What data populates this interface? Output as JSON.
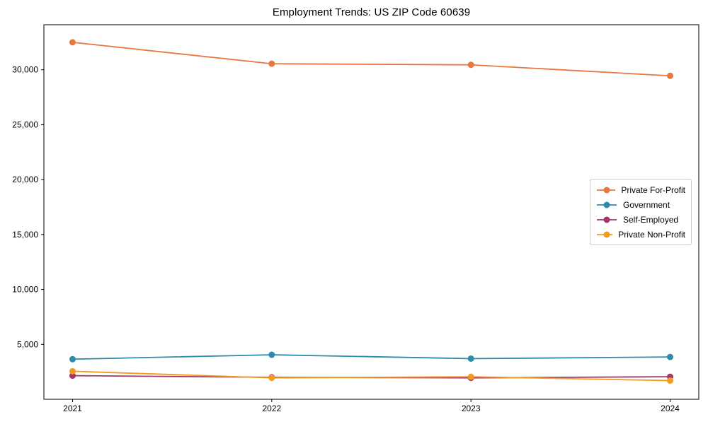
{
  "figure": {
    "title": "Employment Trends: US ZIP Code 60639",
    "background": "#ffffff",
    "spine_color": "#000000"
  },
  "chart_data": {
    "type": "line",
    "title": "Employment Trends: US ZIP Code 60639",
    "xlabel": "",
    "ylabel": "",
    "grid": false,
    "marker": "circle",
    "legend_position": "center-right",
    "x": [
      2021,
      2022,
      2023,
      2024
    ],
    "x_labels": [
      "2021",
      "2022",
      "2023",
      "2024"
    ],
    "ylim": [
      0,
      34100
    ],
    "yticks": [
      5000,
      10000,
      15000,
      20000,
      25000,
      30000
    ],
    "ytick_labels": [
      "5,000",
      "10,000",
      "15,000",
      "20,000",
      "25,000",
      "30,000"
    ],
    "series": [
      {
        "name": "Private For-Profit",
        "color": "#e8763d",
        "values": [
          32500,
          30550,
          30450,
          29450
        ]
      },
      {
        "name": "Government",
        "color": "#2e8bab",
        "values": [
          3650,
          4050,
          3700,
          3850
        ]
      },
      {
        "name": "Self-Employed",
        "color": "#a5356d",
        "values": [
          2150,
          2000,
          1950,
          2050
        ]
      },
      {
        "name": "Private Non-Profit",
        "color": "#f29c1c",
        "values": [
          2550,
          1950,
          2050,
          1700
        ]
      }
    ]
  }
}
